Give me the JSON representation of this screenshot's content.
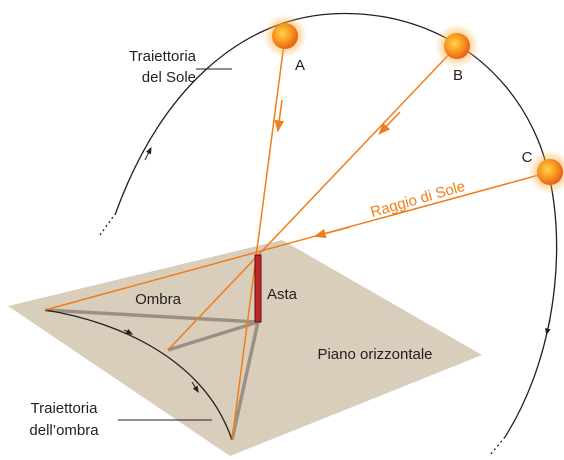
{
  "sun_path": {
    "label_lines": [
      "Traiettoria",
      "del Sole"
    ]
  },
  "suns": [
    {
      "label": "A"
    },
    {
      "label": "B"
    },
    {
      "label": "C"
    }
  ],
  "ray_label": "Raggio di Sole",
  "shadow_label": "Ombra",
  "pole_label": "Asta",
  "plane_label": "Piano orizzontale",
  "shadow_path": {
    "label_lines": [
      "Traiettoria",
      "dell’ombra"
    ]
  }
}
